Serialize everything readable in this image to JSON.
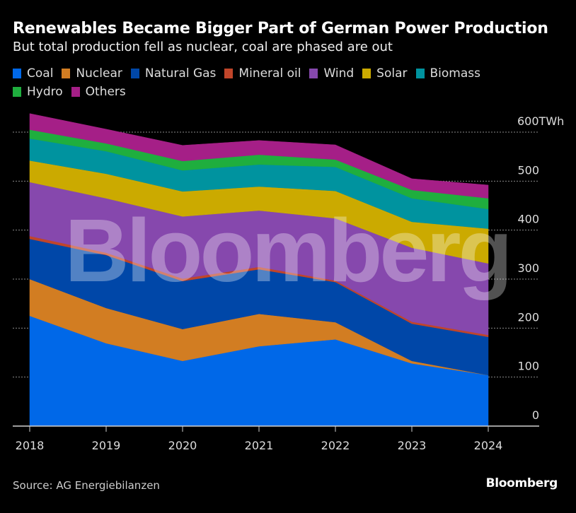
{
  "title": "Renewables Became Bigger Part of German Power Production",
  "subtitle": "But total production fell as nuclear, coal are phased are out",
  "source": "Source: AG Energiebilanzen",
  "brand": "Bloomberg",
  "watermark": "Bloomberg",
  "chart_data": {
    "type": "area",
    "stacked": true,
    "title": "Renewables Became Bigger Part of German Power Production",
    "subtitle": "But total production fell as nuclear, coal are phased are out",
    "xlabel": "",
    "ylabel": "TWh",
    "x": [
      "2018",
      "2019",
      "2020",
      "2021",
      "2022",
      "2023",
      "2024"
    ],
    "ylim": [
      0,
      600
    ],
    "yticks": [
      0,
      100,
      200,
      300,
      400,
      500,
      600
    ],
    "ytick_labels": [
      "0",
      "100",
      "200",
      "300",
      "400",
      "500",
      "600TWh"
    ],
    "grid": true,
    "legend_position": "top-left",
    "series": [
      {
        "name": "Coal",
        "color": "#0068e8",
        "values": [
          225,
          169,
          133,
          163,
          177,
          128,
          104
        ]
      },
      {
        "name": "Nuclear",
        "color": "#d27d22",
        "values": [
          75,
          72,
          65,
          66,
          35,
          5,
          0
        ]
      },
      {
        "name": "Natural Gas",
        "color": "#0047a8",
        "values": [
          82,
          108,
          98,
          91,
          82,
          76,
          78
        ]
      },
      {
        "name": "Mineral oil",
        "color": "#c0452a",
        "values": [
          6,
          5,
          5,
          5,
          3,
          4,
          4
        ]
      },
      {
        "name": "Wind",
        "color": "#8648ad",
        "values": [
          110,
          111,
          127,
          115,
          127,
          151,
          146
        ]
      },
      {
        "name": "Solar",
        "color": "#cbaa00",
        "values": [
          44,
          50,
          51,
          49,
          56,
          53,
          71
        ]
      },
      {
        "name": "Biomass",
        "color": "#00939f",
        "values": [
          45,
          46,
          43,
          45,
          49,
          48,
          40
        ]
      },
      {
        "name": "Hydro",
        "color": "#1fae3e",
        "values": [
          18,
          16,
          19,
          20,
          15,
          17,
          22
        ]
      },
      {
        "name": "Others",
        "color": "#a51f87",
        "values": [
          33,
          29,
          32,
          29,
          30,
          23,
          27
        ]
      }
    ]
  }
}
